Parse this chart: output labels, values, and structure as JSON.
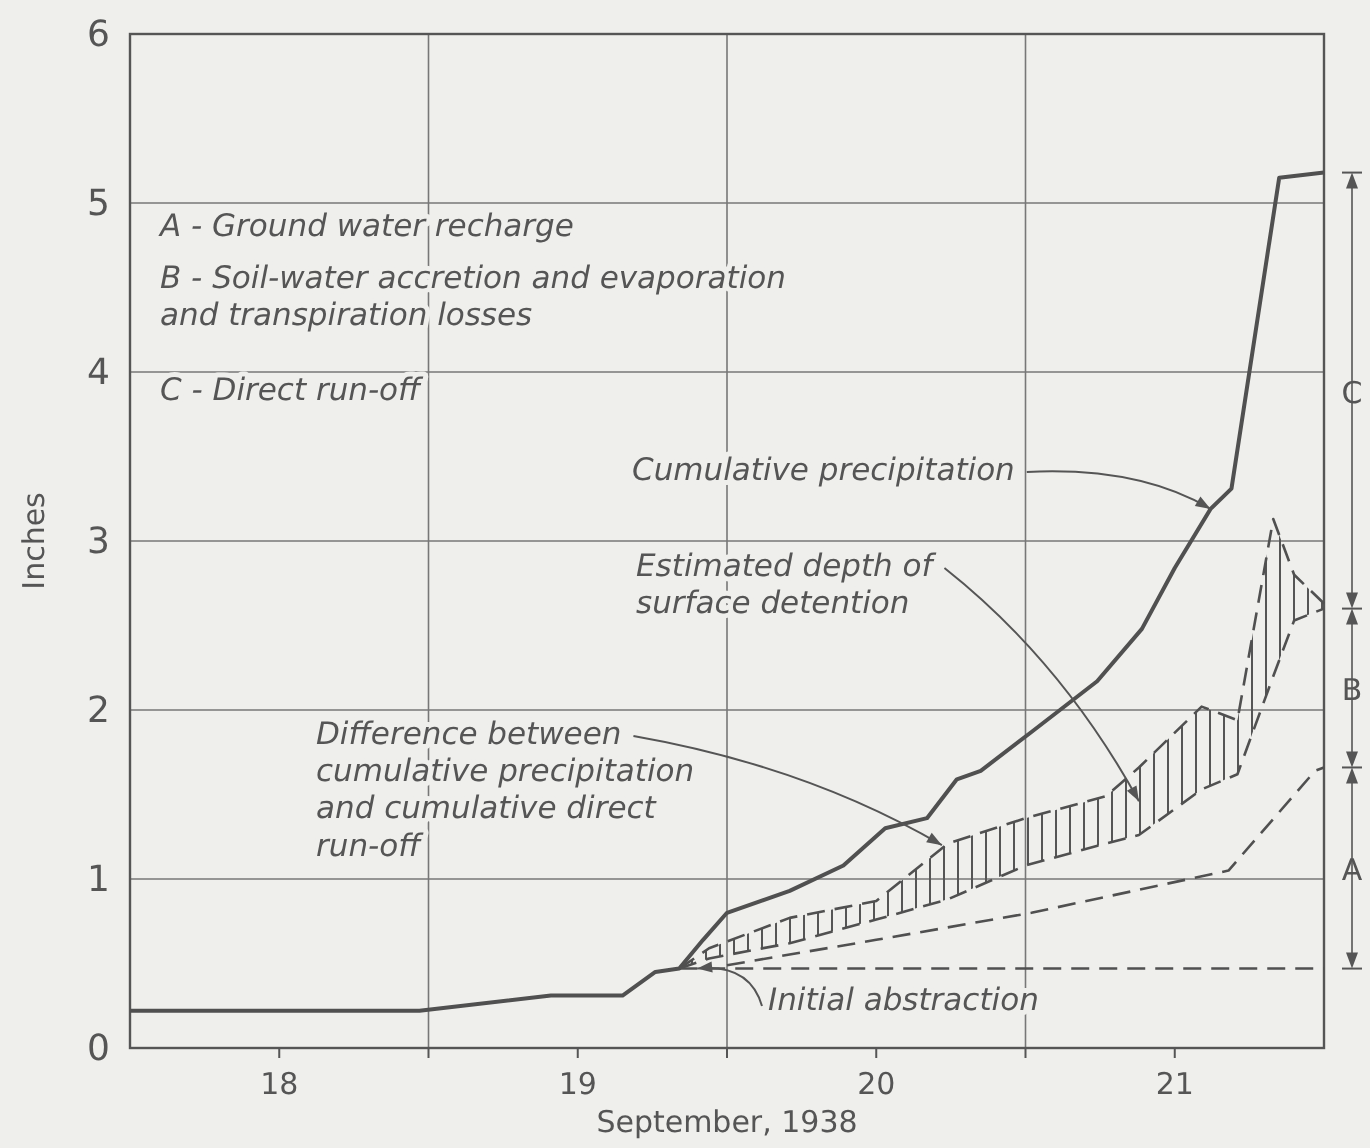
{
  "chart_data": {
    "type": "line",
    "xlabel": "September, 1938",
    "ylabel": "Inches",
    "xlim": [
      17.5,
      21.5
    ],
    "ylim": [
      0,
      6
    ],
    "xticks": [
      18,
      {
        "value": 18.5,
        "label": null
      },
      19,
      {
        "value": 19.5,
        "label": null
      },
      20,
      {
        "value": 20.5,
        "label": null
      },
      21
    ],
    "yticks": [
      0,
      1,
      2,
      3,
      4,
      5,
      6
    ],
    "grid": true,
    "series": [
      {
        "color": "#505050",
        "line_style": "solid",
        "x": [
          17.5,
          18.47,
          18.91,
          19.15,
          19.26,
          19.34,
          19.42,
          19.5,
          19.71,
          19.89,
          20.03,
          20.17,
          20.27,
          20.35,
          20.52,
          20.74,
          20.89,
          21.0,
          21.12,
          21.19,
          21.35,
          21.5
        ],
        "values": [
          0.22,
          0.22,
          0.31,
          0.31,
          0.45,
          0.47,
          0.64,
          0.8,
          0.93,
          1.08,
          1.3,
          1.36,
          1.59,
          1.64,
          1.87,
          2.17,
          2.48,
          2.84,
          3.19,
          3.31,
          5.15,
          5.18
        ]
      },
      {
        "color": "#505050",
        "line_style": "dashed",
        "x": [
          19.34,
          19.44,
          19.71,
          20.0,
          20.24,
          20.5,
          20.77,
          20.88,
          21.09,
          21.21,
          21.33,
          21.4,
          21.5
        ],
        "values": [
          0.47,
          0.59,
          0.77,
          0.87,
          1.21,
          1.36,
          1.49,
          1.66,
          2.02,
          1.94,
          3.13,
          2.8,
          2.63
        ],
        "lower": [
          0.47,
          0.53,
          0.62,
          0.76,
          0.88,
          1.08,
          1.21,
          1.26,
          1.53,
          1.62,
          2.2,
          2.53,
          2.6
        ],
        "upper": [
          0.47,
          0.59,
          0.77,
          0.87,
          1.21,
          1.36,
          1.49,
          1.66,
          2.02,
          1.94,
          3.13,
          2.8,
          2.63
        ]
      },
      {
        "color": "#505050",
        "line_style": "dashed",
        "x": [
          19.34,
          19.44,
          19.71,
          20.0,
          20.24,
          20.5,
          20.77,
          20.88,
          21.09,
          21.21,
          21.33,
          21.4,
          21.5
        ],
        "values": [
          0.47,
          0.53,
          0.62,
          0.76,
          0.88,
          1.08,
          1.21,
          1.26,
          1.53,
          1.62,
          2.2,
          2.53,
          2.6
        ]
      },
      {
        "color": "#505050",
        "line_style": "dashed",
        "x": [
          19.5,
          20.0,
          20.52,
          21.18,
          21.47,
          21.5
        ],
        "values": [
          0.49,
          0.64,
          0.8,
          1.05,
          1.64,
          1.66
        ]
      },
      {
        "color": "#505050",
        "line_style": "dashed",
        "x": [
          19.34,
          21.5
        ],
        "values": [
          0.47,
          0.47
        ]
      }
    ],
    "annotations": [
      "A - Ground water recharge",
      "B - Soil-water accretion and evaporation and transpiration losses",
      "C - Direct run-off",
      {
        "text": "Cumulative precipitation",
        "x": 21.12,
        "y": 3.19
      },
      "Estimated depth of surface detention",
      {
        "text": "Difference between cumulative precipitation and cumulative direct run-off",
        "x": 20.22,
        "y": 1.2
      },
      {
        "text": "Initial abstraction",
        "x": 19.4,
        "y": 0.47
      },
      "A",
      "B",
      "C"
    ]
  }
}
